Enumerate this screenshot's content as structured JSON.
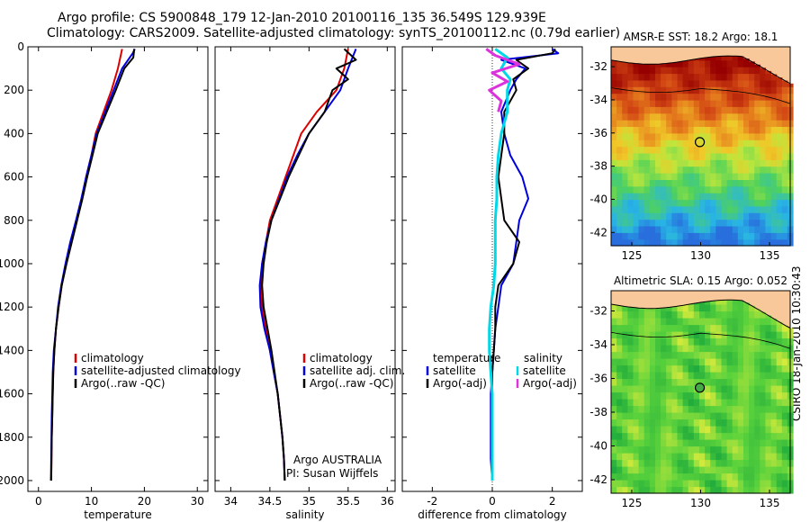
{
  "header": {
    "title_line1": "Argo profile: CS 5900848_179 12-Jan-2010 20100116_135 36.549S 129.939E",
    "title_line2": "Climatology: CARS2009. Satellite-adjusted climatology: synTS_20100112.nc (0.79d earlier)"
  },
  "side_caption": "CSIRO 18-Jan-2010 10:30:43",
  "colors": {
    "climatology": "#dd0000",
    "satellite": "#0000dd",
    "argo": "#000000",
    "salinity_sat": "#00d8e8",
    "salinity_argo": "#dd33dd"
  },
  "chart_data": [
    {
      "type": "line",
      "panel": "temperature",
      "xlabel": "temperature",
      "xlim": [
        -2,
        32
      ],
      "xticks": [
        0,
        10,
        20,
        30
      ],
      "ylim": [
        2050,
        0
      ],
      "yticks": [
        0,
        200,
        400,
        600,
        800,
        1000,
        1200,
        1400,
        1600,
        1800,
        2000
      ],
      "legend": [
        "climatology",
        "satellite-adjusted climatology",
        "Argo(..raw -QC)"
      ],
      "series": [
        {
          "name": "climatology",
          "depth": [
            10,
            100,
            200,
            300,
            400,
            500,
            600,
            700,
            800,
            900,
            1000,
            1100,
            1200,
            1300,
            1400,
            1500,
            1600,
            1700,
            1800,
            1900,
            2000
          ],
          "values": [
            15.8,
            15.0,
            13.8,
            12.3,
            10.8,
            10.0,
            9.0,
            8.2,
            7.2,
            6.2,
            5.2,
            4.4,
            3.8,
            3.3,
            3.0,
            2.8,
            2.7,
            2.6,
            2.5,
            2.45,
            2.4
          ]
        },
        {
          "name": "satellite-adjusted climatology",
          "depth": [
            10,
            30,
            100,
            200,
            300,
            400,
            500,
            600,
            700,
            800,
            900,
            1000,
            1100,
            1200,
            1300,
            1400,
            1500,
            1600,
            1700,
            1800,
            1900,
            2000
          ],
          "values": [
            18.2,
            17.8,
            15.8,
            14.2,
            12.6,
            11.0,
            10.0,
            9.0,
            8.1,
            7.1,
            6.0,
            5.1,
            4.3,
            3.7,
            3.3,
            2.9,
            2.7,
            2.6,
            2.5,
            2.45,
            2.4,
            2.35
          ]
        },
        {
          "name": "Argo(..raw -QC)",
          "depth": [
            10,
            50,
            100,
            200,
            300,
            400,
            500,
            600,
            700,
            800,
            900,
            1000,
            1100,
            1200,
            1300,
            1400,
            1500,
            1600,
            1700,
            1800,
            1900,
            2000
          ],
          "values": [
            18.1,
            17.9,
            16.2,
            14.6,
            12.9,
            11.2,
            10.2,
            9.2,
            8.3,
            7.3,
            6.3,
            5.3,
            4.4,
            3.8,
            3.3,
            3.0,
            2.8,
            2.7,
            2.6,
            2.5,
            2.45,
            2.4
          ]
        }
      ]
    },
    {
      "type": "line",
      "panel": "salinity",
      "xlabel": "salinity",
      "xlim": [
        33.8,
        36.1
      ],
      "xticks": [
        34,
        34.5,
        35,
        35.5,
        36
      ],
      "ylim": [
        2050,
        0
      ],
      "legend": [
        "climatology",
        "satellite adj. clim.",
        "Argo(..raw -QC)"
      ],
      "annotation": [
        "Argo AUSTRALIA",
        "PI: Susan Wijffels"
      ],
      "series": [
        {
          "name": "climatology",
          "depth": [
            10,
            100,
            200,
            300,
            400,
            500,
            600,
            700,
            800,
            900,
            1000,
            1100,
            1200,
            1300,
            1400,
            1500,
            1600,
            1700,
            1800,
            1900,
            2000
          ],
          "values": [
            35.5,
            35.45,
            35.35,
            35.1,
            34.9,
            34.8,
            34.7,
            34.6,
            34.5,
            34.45,
            34.4,
            34.38,
            34.4,
            34.45,
            34.5,
            34.55,
            34.6,
            34.63,
            34.66,
            34.68,
            34.69
          ]
        },
        {
          "name": "satellite adj. clim.",
          "depth": [
            10,
            100,
            200,
            300,
            400,
            500,
            600,
            700,
            800,
            900,
            1000,
            1100,
            1200,
            1300,
            1400,
            1500,
            1600,
            1700,
            1800,
            1900,
            2000
          ],
          "values": [
            35.6,
            35.5,
            35.4,
            35.2,
            35.0,
            34.85,
            34.72,
            34.62,
            34.52,
            34.45,
            34.4,
            34.37,
            34.38,
            34.43,
            34.5,
            34.55,
            34.6,
            34.63,
            34.66,
            34.68,
            34.69
          ]
        },
        {
          "name": "Argo(..raw -QC)",
          "depth": [
            10,
            60,
            100,
            150,
            200,
            300,
            400,
            500,
            600,
            700,
            800,
            900,
            1000,
            1100,
            1200,
            1300,
            1400,
            1500,
            1600,
            1700,
            1800,
            1900,
            2000
          ],
          "values": [
            35.45,
            35.6,
            35.35,
            35.5,
            35.3,
            35.2,
            35.0,
            34.87,
            34.74,
            34.63,
            34.52,
            34.46,
            34.42,
            34.4,
            34.42,
            34.47,
            34.52,
            34.56,
            34.6,
            34.63,
            34.66,
            34.68,
            34.69
          ]
        }
      ]
    },
    {
      "type": "line",
      "panel": "difference",
      "xlabel": "difference from climatology",
      "xlim": [
        -3,
        3
      ],
      "xticks": [
        -2,
        0,
        2
      ],
      "ylim": [
        2050,
        0
      ],
      "legend_temperature_heading": "temperature",
      "legend_salinity_heading": "salinity",
      "legend_temperature": [
        "satellite",
        "Argo(-adj)"
      ],
      "legend_salinity": [
        "satellite",
        "Argo(-adj)"
      ],
      "series": [
        {
          "name": "temperature satellite",
          "depth": [
            10,
            30,
            60,
            100,
            150,
            200,
            300,
            400,
            500,
            600,
            700,
            800,
            900,
            1000,
            1100,
            1200,
            1300,
            1400,
            1500,
            1600,
            1700,
            1800,
            1900,
            2000
          ],
          "values": [
            2.0,
            2.2,
            0.3,
            1.1,
            0.8,
            0.6,
            0.3,
            0.4,
            0.6,
            1.0,
            1.2,
            0.9,
            0.8,
            0.7,
            0.3,
            0.2,
            0.1,
            0.05,
            0.0,
            -0.05,
            -0.05,
            -0.05,
            -0.05,
            0.0
          ]
        },
        {
          "name": "temperature Argo(-adj)",
          "depth": [
            10,
            30,
            60,
            100,
            150,
            200,
            300,
            400,
            500,
            600,
            700,
            800,
            900,
            1000,
            1100,
            1200,
            1300,
            1400,
            1500,
            1600,
            1700,
            1800,
            1900,
            2000
          ],
          "values": [
            2.1,
            2.0,
            0.8,
            1.2,
            0.7,
            0.8,
            0.4,
            0.4,
            0.3,
            0.2,
            0.3,
            0.4,
            0.9,
            0.7,
            0.2,
            0.1,
            0.1,
            0.05,
            0.0,
            0.0,
            0.0,
            0.0,
            0.0,
            0.0
          ]
        },
        {
          "name": "salinity satellite",
          "depth": [
            10,
            50,
            100,
            150,
            200,
            300,
            400,
            500,
            600,
            700,
            800,
            900,
            1000,
            1100,
            1200,
            1300,
            1400,
            1500,
            1600,
            1700,
            1800,
            1900,
            2000
          ],
          "values": [
            0.1,
            0.5,
            0.3,
            0.6,
            0.5,
            0.5,
            0.3,
            0.2,
            0.15,
            0.15,
            0.1,
            0.1,
            0.1,
            0.05,
            -0.05,
            -0.1,
            -0.1,
            -0.05,
            0.0,
            0.0,
            0.0,
            0.0,
            0.0
          ]
        },
        {
          "name": "salinity Argo(-adj)",
          "depth": [
            10,
            40,
            80,
            120,
            160,
            200,
            250,
            300
          ],
          "values": [
            -0.2,
            0.1,
            0.9,
            0.0,
            0.5,
            -0.1,
            0.3,
            0.2
          ]
        }
      ]
    },
    {
      "type": "heatmap",
      "panel": "sst-map",
      "title": "AMSR-E SST: 18.2 Argo: 18.1",
      "xlim": [
        123.5,
        136.5
      ],
      "ylim": [
        -42.8,
        -30.8
      ],
      "xticks": [
        125,
        130,
        135
      ],
      "yticks": [
        -32,
        -34,
        -36,
        -38,
        -40,
        -42
      ],
      "marker": [
        129.939,
        -36.549
      ]
    },
    {
      "type": "heatmap",
      "panel": "sla-map",
      "title": "Altimetric SLA: 0.15 Argo: 0.052",
      "xlim": [
        123.5,
        136.5
      ],
      "ylim": [
        -42.8,
        -30.8
      ],
      "xticks": [
        125,
        130,
        135
      ],
      "yticks": [
        -32,
        -34,
        -36,
        -38,
        -40,
        -42
      ],
      "marker": [
        129.939,
        -36.549
      ]
    }
  ]
}
